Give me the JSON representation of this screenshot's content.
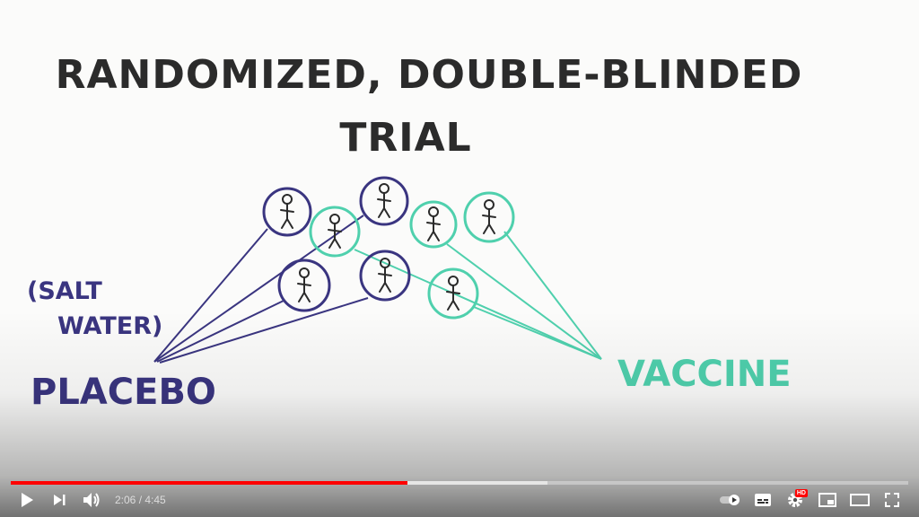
{
  "video": {
    "title_line1": "RANDOMIZED, DOUBLE-BLINDED",
    "title_line2": "TRIAL",
    "salt_line1": "(SALT",
    "salt_line2": "WATER)",
    "placebo_label": "PLACEBO",
    "vaccine_label": "VACCINE"
  },
  "player": {
    "current_time": "2:06",
    "duration": "4:45",
    "time_display": "2:06 / 4:45",
    "played_fraction": 0.442,
    "buffered_fraction": 0.598,
    "hd_badge": "HD",
    "colors": {
      "placebo": "#3a3580",
      "vaccine": "#4fd0ad",
      "ink": "#2b2b2b",
      "progress": "#ff0000"
    },
    "icons": [
      "play-icon",
      "next-icon",
      "volume-icon",
      "autoplay-toggle",
      "subtitles-icon",
      "settings-icon",
      "miniplayer-icon",
      "theater-icon",
      "fullscreen-icon"
    ]
  }
}
